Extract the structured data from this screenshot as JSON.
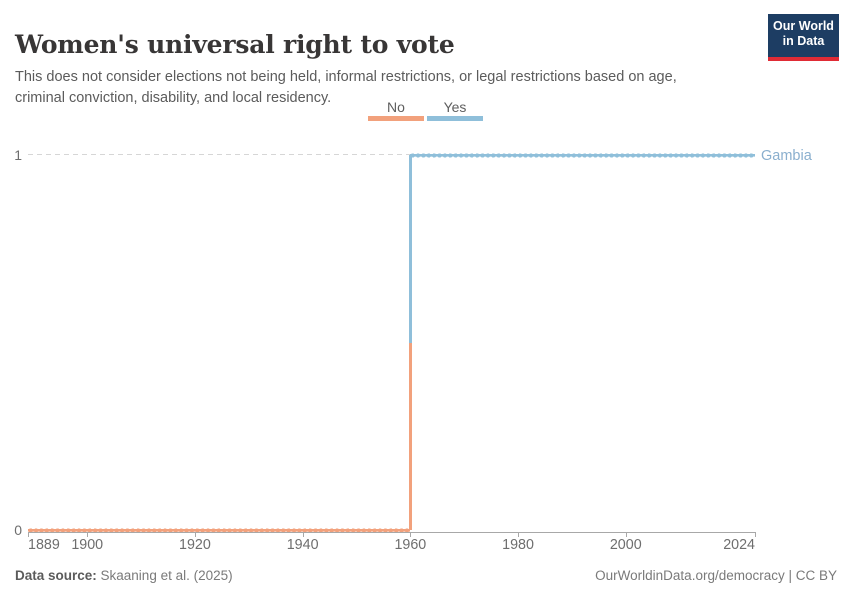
{
  "header": {
    "title": "Women's universal right to vote",
    "subtitle": "This does not consider elections not being held, informal restrictions, or legal restrictions based on age, criminal conviction, disability, and local residency.",
    "logo": {
      "line1": "Our World",
      "line2": "in Data"
    }
  },
  "legend": {
    "items": [
      {
        "label": "No",
        "color": "#F2A17C"
      },
      {
        "label": "Yes",
        "color": "#8FBFDA"
      }
    ]
  },
  "chart_data": {
    "type": "line",
    "step": true,
    "title": "Women's universal right to vote",
    "entity": "Gambia",
    "entity_label_color": "#8AAFCE",
    "x_range": [
      1889,
      2024
    ],
    "y_range": [
      0,
      1
    ],
    "x_ticks": [
      1889,
      1900,
      1920,
      1940,
      1960,
      1980,
      2000,
      2024
    ],
    "y_ticks": [
      0,
      1
    ],
    "transition_year": 1960,
    "grid": "dashed line at y=1 only",
    "legend_position": "top-center",
    "series": [
      {
        "name": "Gambia",
        "segments": [
          {
            "label": "No",
            "value": 0,
            "from": 1889,
            "to": 1960,
            "color": "#F2A17C"
          },
          {
            "label": "Yes",
            "value": 1,
            "from": 1960,
            "to": 2024,
            "color": "#8FBFDA"
          }
        ]
      }
    ]
  },
  "footer": {
    "datasource_label": "Data source:",
    "datasource_value": " Skaaning et al. (2025)",
    "link": "OurWorldinData.org/democracy | CC BY"
  },
  "colors": {
    "logo_navy": "#1D3D63",
    "logo_red": "#E02B35",
    "no": "#F2A17C",
    "yes": "#8FBFDA"
  }
}
